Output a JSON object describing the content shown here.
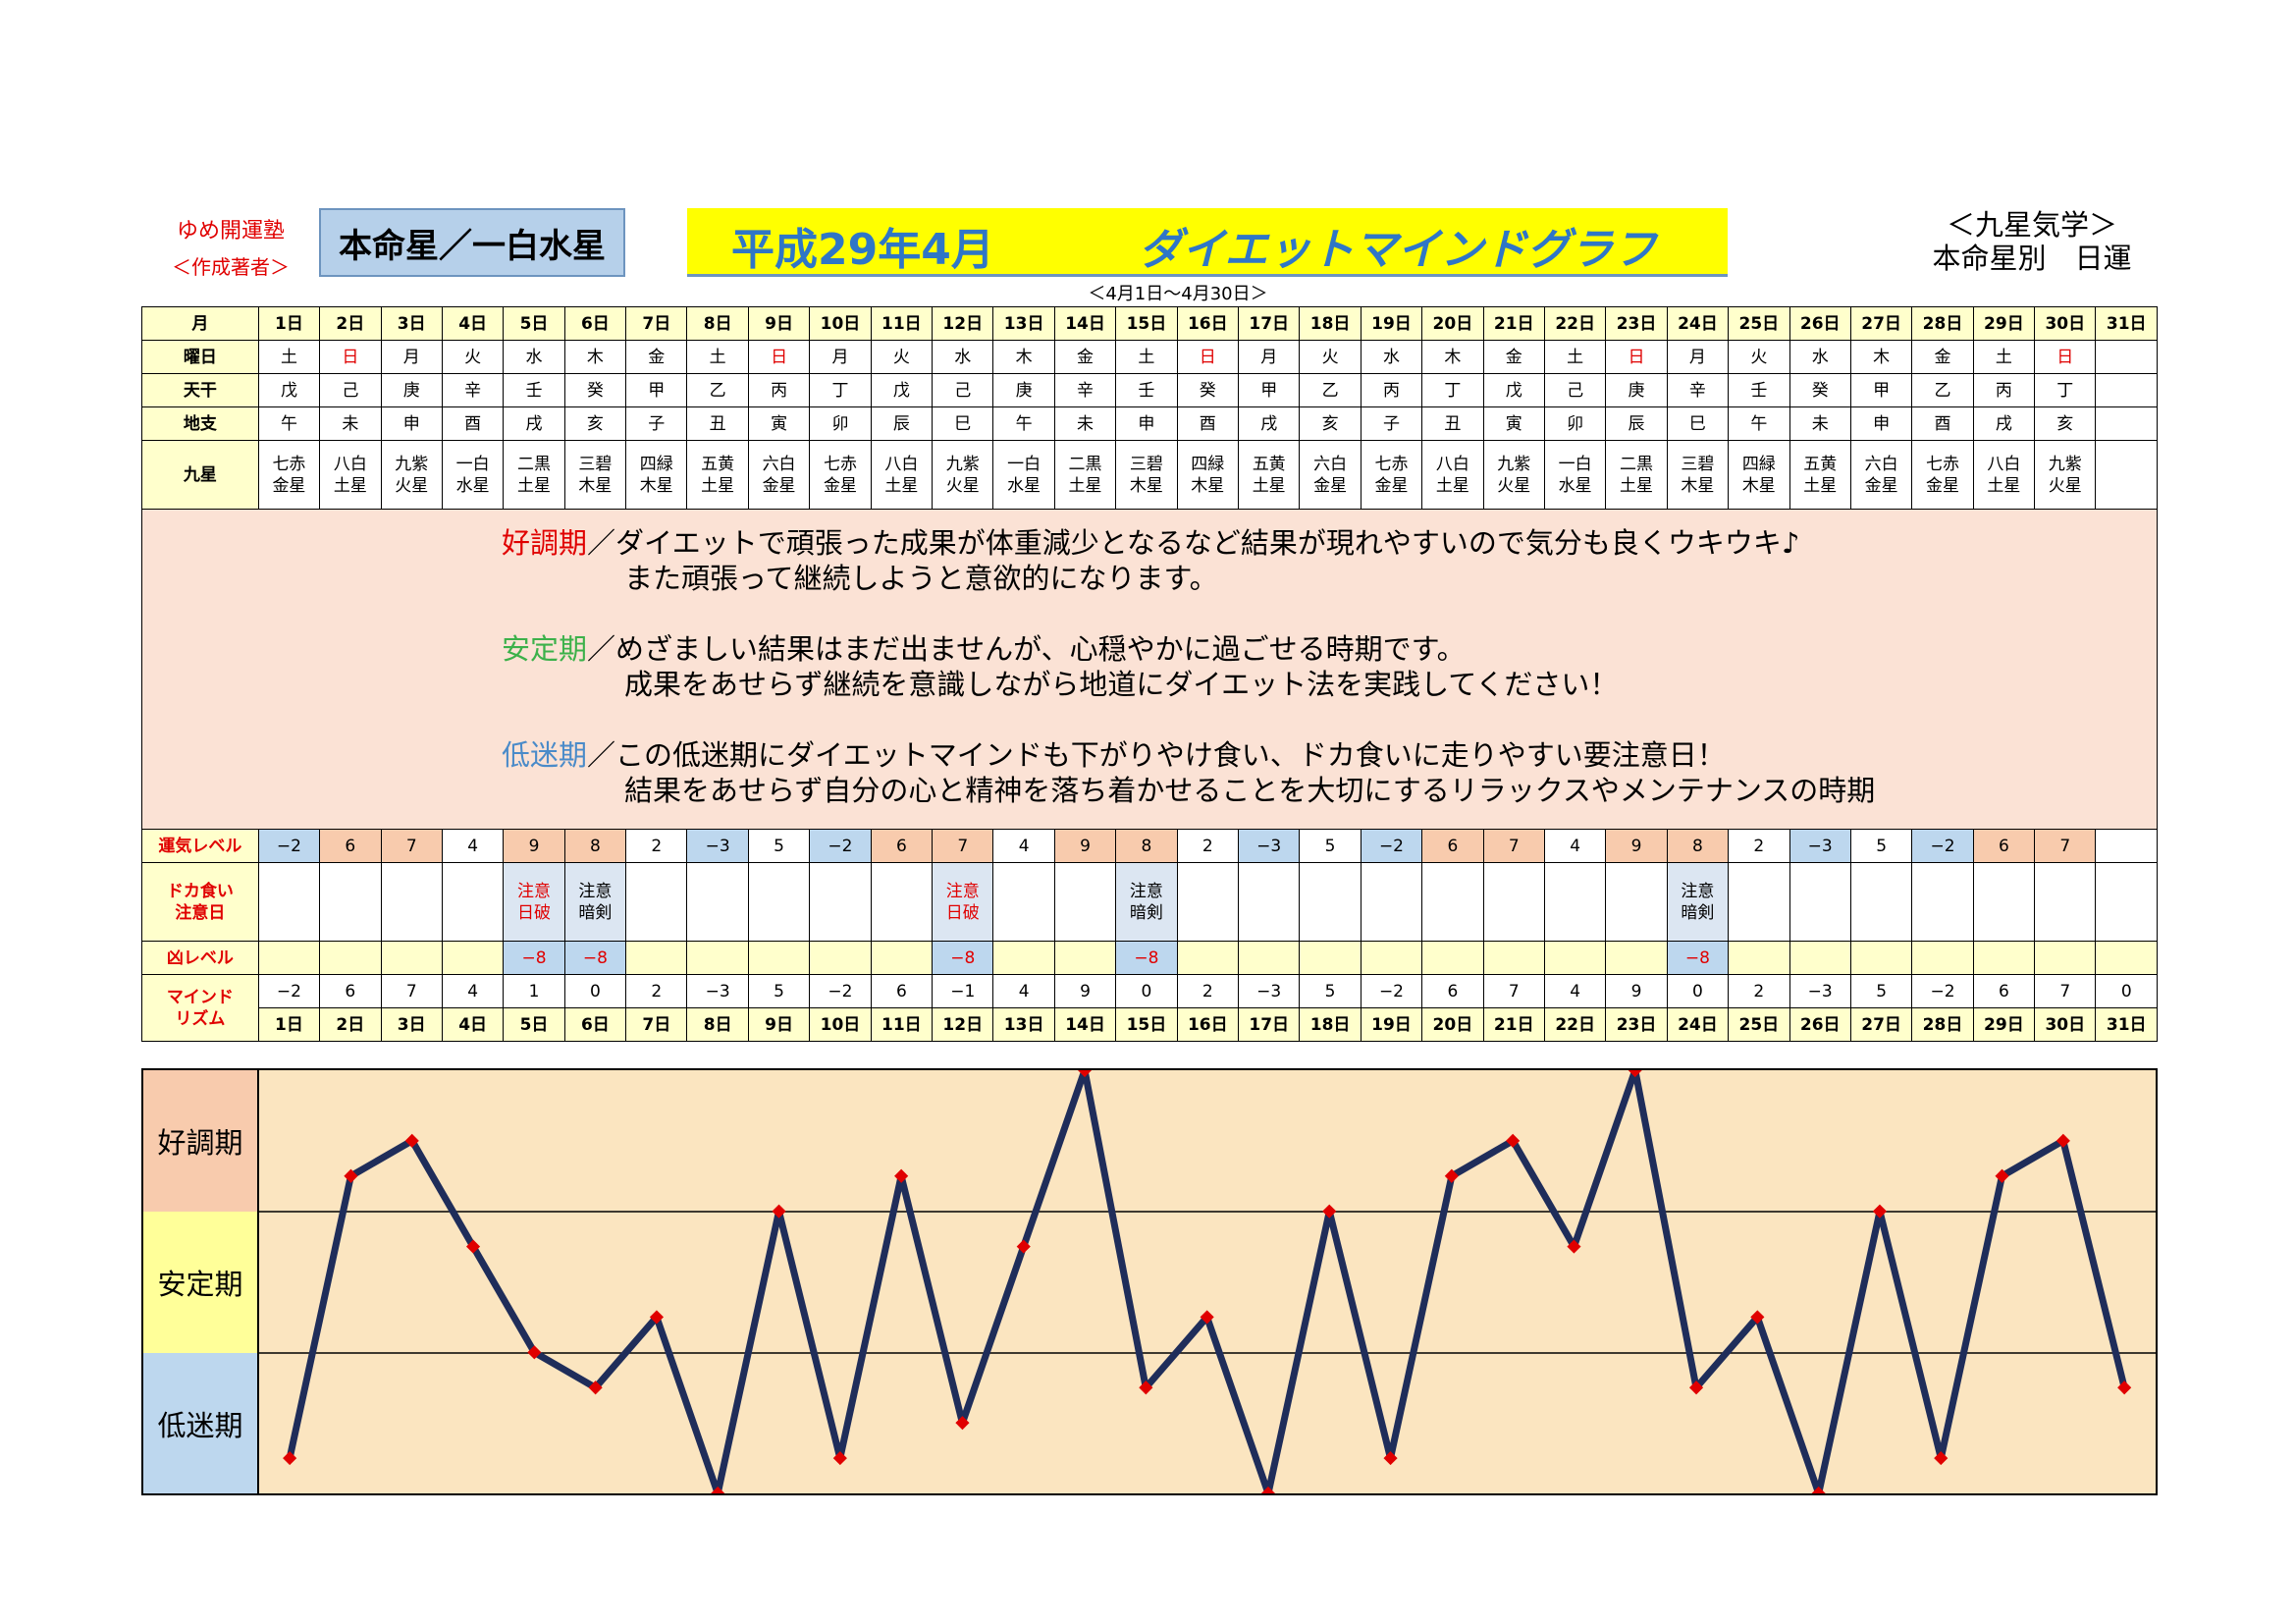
{
  "header": {
    "brand": "ゆめ開運塾",
    "author": "＜作成著者＞",
    "honmei": "本命星／一白水星",
    "title_date": "平成29年4月",
    "title_name": "ダイエットマインドグラフ",
    "date_range": "＜4月1日～4月30日＞",
    "school": "＜九星気学＞",
    "school_sub": "本命星別　日運"
  },
  "table": {
    "labels": {
      "month": "月",
      "weekday": "曜日",
      "tenkan": "天干",
      "chishi": "地支",
      "kyusei": "九星",
      "luck": "運気レベル",
      "binge": "ドカ食い\n注意日",
      "bad": "凶レベル",
      "mind": "マインド\nリズム"
    },
    "days": [
      "1日",
      "2日",
      "3日",
      "4日",
      "5日",
      "6日",
      "7日",
      "8日",
      "9日",
      "10日",
      "11日",
      "12日",
      "13日",
      "14日",
      "15日",
      "16日",
      "17日",
      "18日",
      "19日",
      "20日",
      "21日",
      "22日",
      "23日",
      "24日",
      "25日",
      "26日",
      "27日",
      "28日",
      "29日",
      "30日",
      "31日"
    ],
    "weekdays": [
      "土",
      "日",
      "月",
      "火",
      "水",
      "木",
      "金",
      "土",
      "日",
      "月",
      "火",
      "水",
      "木",
      "金",
      "土",
      "日",
      "月",
      "火",
      "水",
      "木",
      "金",
      "土",
      "日",
      "月",
      "火",
      "水",
      "木",
      "金",
      "土",
      "日",
      ""
    ],
    "tenkan": [
      "戊",
      "己",
      "庚",
      "辛",
      "壬",
      "癸",
      "甲",
      "乙",
      "丙",
      "丁",
      "戊",
      "己",
      "庚",
      "辛",
      "壬",
      "癸",
      "甲",
      "乙",
      "丙",
      "丁",
      "戊",
      "己",
      "庚",
      "辛",
      "壬",
      "癸",
      "甲",
      "乙",
      "丙",
      "丁",
      ""
    ],
    "chishi": [
      "午",
      "未",
      "申",
      "酉",
      "戌",
      "亥",
      "子",
      "丑",
      "寅",
      "卯",
      "辰",
      "巳",
      "午",
      "未",
      "申",
      "酉",
      "戌",
      "亥",
      "子",
      "丑",
      "寅",
      "卯",
      "辰",
      "巳",
      "午",
      "未",
      "申",
      "酉",
      "戌",
      "亥",
      ""
    ],
    "kyusei": [
      "七赤\n金星",
      "八白\n土星",
      "九紫\n火星",
      "一白\n水星",
      "二黒\n土星",
      "三碧\n木星",
      "四緑\n木星",
      "五黄\n土星",
      "六白\n金星",
      "七赤\n金星",
      "八白\n土星",
      "九紫\n火星",
      "一白\n水星",
      "二黒\n土星",
      "三碧\n木星",
      "四緑\n木星",
      "五黄\n土星",
      "六白\n金星",
      "七赤\n金星",
      "八白\n土星",
      "九紫\n火星",
      "一白\n水星",
      "二黒\n土星",
      "三碧\n木星",
      "四緑\n木星",
      "五黄\n土星",
      "六白\n金星",
      "七赤\n金星",
      "八白\n土星",
      "九紫\n火星",
      ""
    ],
    "luck": [
      "−2",
      "6",
      "7",
      "4",
      "9",
      "8",
      "2",
      "−3",
      "5",
      "−2",
      "6",
      "7",
      "4",
      "9",
      "8",
      "2",
      "−3",
      "5",
      "−2",
      "6",
      "7",
      "4",
      "9",
      "8",
      "2",
      "−3",
      "5",
      "−2",
      "6",
      "7",
      ""
    ],
    "binge": [
      "",
      "",
      "",
      "",
      "注意\n日破",
      "注意\n暗剣",
      "",
      "",
      "",
      "",
      "",
      "注意\n日破",
      "",
      "",
      "注意\n暗剣",
      "",
      "",
      "",
      "",
      "",
      "",
      "",
      "",
      "注意\n暗剣",
      "",
      "",
      "",
      "",
      "",
      "",
      ""
    ],
    "bad": [
      "",
      "",
      "",
      "",
      "−8",
      "−8",
      "",
      "",
      "",
      "",
      "",
      "−8",
      "",
      "",
      "−8",
      "",
      "",
      "",
      "",
      "",
      "",
      "",
      "",
      "−8",
      "",
      "",
      "",
      "",
      "",
      "",
      ""
    ],
    "mind": [
      "−2",
      "6",
      "7",
      "4",
      "1",
      "0",
      "2",
      "−3",
      "5",
      "−2",
      "6",
      "−1",
      "4",
      "9",
      "0",
      "2",
      "−3",
      "5",
      "−2",
      "6",
      "7",
      "4",
      "9",
      "0",
      "2",
      "−3",
      "5",
      "−2",
      "6",
      "7",
      "0"
    ]
  },
  "description": {
    "good_term": "好調期",
    "good_line1": "／ダイエットで頑張った成果が体重減少となるなど結果が現れやすいので気分も良くウキウキ♪",
    "good_line2": "また頑張って継続しようと意欲的になります。",
    "stable_term": "安定期",
    "stable_line1": "／めざましい結果はまだ出ませんが、心穏やかに過ごせる時期です。",
    "stable_line2": "成果をあせらず継続を意識しながら地道にダイエット法を実践してください！",
    "low_term": "低迷期",
    "low_line1": "／この低迷期にダイエットマインドも下がりやけ食い、ドカ食いに走りやすい要注意日！",
    "low_line2": "結果をあせらず自分の心と精神を落ち着かせることを大切にするリラックスやメンテナンスの時期"
  },
  "colors": {
    "good": "#f8cbad",
    "stable": "#ffff99",
    "low": "#bdd7ee",
    "plot_bg": "#fbe5c0",
    "line": "#1f2d5a",
    "marker": "#e00000"
  },
  "chart_data": {
    "type": "line",
    "categories": [
      "1日",
      "2日",
      "3日",
      "4日",
      "5日",
      "6日",
      "7日",
      "8日",
      "9日",
      "10日",
      "11日",
      "12日",
      "13日",
      "14日",
      "15日",
      "16日",
      "17日",
      "18日",
      "19日",
      "20日",
      "21日",
      "22日",
      "23日",
      "24日",
      "25日",
      "26日",
      "27日",
      "28日",
      "29日",
      "30日",
      "31日"
    ],
    "series": [
      {
        "values": [
          -2,
          6,
          7,
          4,
          1,
          0,
          2,
          -3,
          5,
          -2,
          6,
          -1,
          4,
          9,
          0,
          2,
          -3,
          5,
          -2,
          6,
          7,
          4,
          9,
          0,
          2,
          -3,
          5,
          -2,
          6,
          7,
          0
        ]
      }
    ],
    "zones": [
      "好調期",
      "安定期",
      "低迷期"
    ],
    "ylim": [
      -3,
      9
    ],
    "grid": true
  }
}
